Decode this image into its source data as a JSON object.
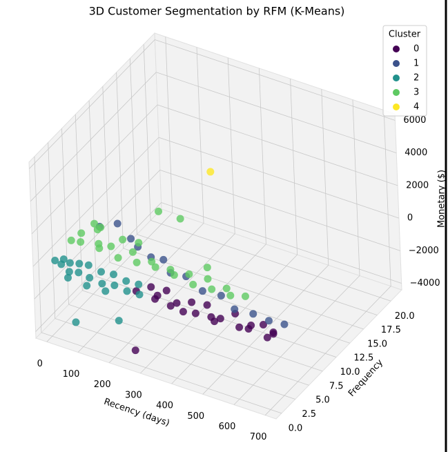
{
  "chart_data": {
    "type": "scatter3d",
    "title": "3D Customer Segmentation by RFM (K-Means)",
    "x_label": "Recency (days)",
    "y_label": "Frequency",
    "z_label": "Monetary ($)",
    "legend_title": "Cluster",
    "legend_position": "upper right",
    "grid": true,
    "xlim": [
      -35,
      735
    ],
    "xticks": [
      0,
      100,
      200,
      300,
      400,
      500,
      600,
      700
    ],
    "ylim": [
      -1,
      22
    ],
    "yticks": [
      {
        "value": 0,
        "label": "0.0"
      },
      {
        "value": 2.5,
        "label": "2.5"
      },
      {
        "value": 5,
        "label": "5.0"
      },
      {
        "value": 7.5,
        "label": "7.5"
      },
      {
        "value": 10,
        "label": "10.0"
      },
      {
        "value": 12.5,
        "label": "12.5"
      },
      {
        "value": 15,
        "label": "15.0"
      },
      {
        "value": 17.5,
        "label": "17.5"
      },
      {
        "value": 20,
        "label": "20.0"
      }
    ],
    "zlim": [
      -4400,
      6400
    ],
    "zticks": [
      {
        "value": -4000,
        "label": "−4000"
      },
      {
        "value": -2000,
        "label": "−2000"
      },
      0,
      2000,
      4000,
      6000
    ],
    "series": [
      {
        "name": "0",
        "color": "#440154",
        "x": [
          260,
          290,
          320,
          340,
          370,
          390,
          420,
          450,
          470,
          500,
          530,
          560,
          590,
          620,
          650,
          680,
          700,
          700,
          310,
          410,
          510,
          610,
          250
        ],
        "y": [
          1,
          2,
          1,
          2,
          1,
          1,
          2,
          1,
          2,
          1,
          1,
          2,
          1,
          1,
          2,
          1,
          1,
          1,
          2,
          1,
          1,
          2,
          1
        ],
        "z": [
          -300,
          -200,
          -400,
          -100,
          -500,
          -200,
          -300,
          -450,
          -150,
          -350,
          -250,
          -100,
          -400,
          -300,
          -200,
          -450,
          -100,
          0,
          -600,
          -600,
          -550,
          -500,
          -4000
        ]
      },
      {
        "name": "1",
        "color": "#3b528b",
        "x": [
          20,
          60,
          120,
          160,
          220,
          300,
          350,
          420,
          480,
          540,
          600,
          650,
          700,
          260
        ],
        "y": [
          8,
          9,
          8,
          7,
          6,
          5,
          5,
          4,
          4,
          3,
          3,
          3,
          3,
          6
        ],
        "z": [
          -300,
          -200,
          -400,
          -300,
          -200,
          -300,
          -200,
          -300,
          -200,
          -300,
          -200,
          -300,
          -200,
          -100
        ]
      },
      {
        "name": "2",
        "color": "#21918c",
        "x": [
          0,
          10,
          20,
          30,
          45,
          60,
          75,
          90,
          110,
          130,
          150,
          170,
          190,
          210,
          230,
          250,
          270,
          40,
          100,
          160,
          60,
          200
        ],
        "y": [
          1,
          2,
          1,
          2,
          1,
          2,
          1,
          2,
          1,
          2,
          1,
          2,
          1,
          2,
          1,
          2,
          1,
          1,
          1,
          1,
          1,
          1
        ],
        "z": [
          -100,
          -300,
          -200,
          -400,
          -500,
          -250,
          -350,
          -150,
          -450,
          -300,
          -550,
          -200,
          -400,
          -350,
          -500,
          -300,
          -450,
          -900,
          -1000,
          -950,
          -3500,
          -2500
        ]
      },
      {
        "name": "3",
        "color": "#5ec962",
        "x": [
          0,
          15,
          30,
          50,
          70,
          90,
          110,
          130,
          150,
          180,
          210,
          240,
          270,
          300,
          330,
          360,
          390,
          420,
          450,
          480,
          510,
          540,
          40,
          60,
          250,
          320,
          200,
          420
        ],
        "y": [
          4,
          5,
          4,
          6,
          5,
          4,
          5,
          6,
          4,
          5,
          4,
          5,
          4,
          5,
          4,
          5,
          4,
          5,
          4,
          5,
          4,
          5,
          6,
          6,
          6,
          6,
          5,
          5
        ],
        "z": [
          100,
          300,
          200,
          400,
          0,
          200,
          100,
          300,
          0,
          200,
          100,
          0,
          200,
          -100,
          100,
          0,
          -100,
          100,
          0,
          -100,
          0,
          -200,
          700,
          600,
          2800,
          2800,
          900,
          800
        ]
      },
      {
        "name": "4",
        "color": "#fde725",
        "x": [
          350
        ],
        "y": [
          10
        ],
        "z": [
          4500
        ]
      }
    ]
  }
}
